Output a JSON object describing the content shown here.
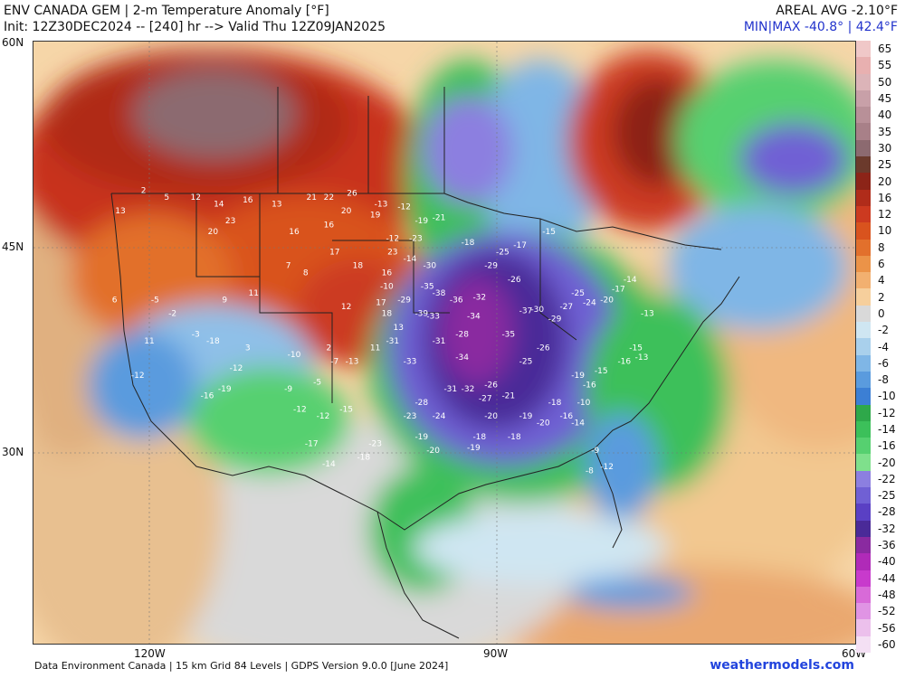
{
  "header": {
    "title": "ENV CANADA GEM | 2-m Temperature Anomaly [°F]",
    "init": "Init: 12Z30DEC2024 -- [240] hr --> Valid Thu 12Z09JAN2025",
    "areal_avg": "AREAL AVG -2.10°F",
    "minmax": "MIN|MAX -40.8° | 42.4°F"
  },
  "axes": {
    "lat_labels": [
      "60N",
      "45N",
      "30N"
    ],
    "lon_labels": [
      "120W",
      "90W",
      "60W"
    ]
  },
  "colorbar": {
    "labels": [
      "65",
      "55",
      "50",
      "45",
      "40",
      "35",
      "30",
      "25",
      "20",
      "16",
      "12",
      "10",
      "8",
      "6",
      "4",
      "2",
      "0",
      "-2",
      "-4",
      "-6",
      "-8",
      "-10",
      "-12",
      "-14",
      "-16",
      "-20",
      "-22",
      "-25",
      "-28",
      "-32",
      "-36",
      "-40",
      "-44",
      "-48",
      "-52",
      "-56",
      "-60"
    ],
    "colors": [
      "#f0c8c8",
      "#e8b0b0",
      "#dcb4b8",
      "#c8a0a8",
      "#b89098",
      "#a88088",
      "#8c6a70",
      "#6b3a2c",
      "#8c2418",
      "#b02c1a",
      "#cc3a20",
      "#d9531e",
      "#e2702c",
      "#eb9348",
      "#f2b070",
      "#f6cf9c",
      "#d9d9d9",
      "#cfe6f2",
      "#a9d0ec",
      "#7fb6e6",
      "#5a9bde",
      "#3c7fd4",
      "#2ea84a",
      "#3cc05a",
      "#56d070",
      "#7fe08c",
      "#8c7fe0",
      "#7060d4",
      "#5a40c4",
      "#4a2a98",
      "#8a2aa0",
      "#b02ab8",
      "#c83acc",
      "#d86ad8",
      "#e094e4",
      "#ecc0ec",
      "#f4e0f4"
    ]
  },
  "anomaly_labels": [
    {
      "v": "-38",
      "lon": -95.0,
      "lat": 41.5
    },
    {
      "v": "-36",
      "lon": -93.5,
      "lat": 41.0
    },
    {
      "v": "-35",
      "lon": -96.0,
      "lat": 42.0
    },
    {
      "v": "-39",
      "lon": -96.5,
      "lat": 40.0
    },
    {
      "v": "-34",
      "lon": -92.0,
      "lat": 39.8
    },
    {
      "v": "-33",
      "lon": -95.5,
      "lat": 39.8
    },
    {
      "v": "-32",
      "lon": -91.5,
      "lat": 41.2
    },
    {
      "v": "-30",
      "lon": -95.8,
      "lat": 43.5
    },
    {
      "v": "-29",
      "lon": -98.0,
      "lat": 41.0
    },
    {
      "v": "-31",
      "lon": -99.0,
      "lat": 38.0
    },
    {
      "v": "-33",
      "lon": -97.5,
      "lat": 36.5
    },
    {
      "v": "-31",
      "lon": -95.0,
      "lat": 38.0
    },
    {
      "v": "-28",
      "lon": -93.0,
      "lat": 38.5
    },
    {
      "v": "-34",
      "lon": -93.0,
      "lat": 36.8
    },
    {
      "v": "-32",
      "lon": -92.5,
      "lat": 34.5
    },
    {
      "v": "-31",
      "lon": -94.0,
      "lat": 34.5
    },
    {
      "v": "-28",
      "lon": -96.5,
      "lat": 33.5
    },
    {
      "v": "-24",
      "lon": -95.0,
      "lat": 32.5
    },
    {
      "v": "-23",
      "lon": -97.5,
      "lat": 32.5
    },
    {
      "v": "-19",
      "lon": -96.5,
      "lat": 31.0
    },
    {
      "v": "-20",
      "lon": -95.5,
      "lat": 30.0
    },
    {
      "v": "-26",
      "lon": -90.5,
      "lat": 34.8
    },
    {
      "v": "-27",
      "lon": -91.0,
      "lat": 33.8
    },
    {
      "v": "-21",
      "lon": -89.0,
      "lat": 34.0
    },
    {
      "v": "-20",
      "lon": -90.5,
      "lat": 32.5
    },
    {
      "v": "-18",
      "lon": -91.5,
      "lat": 31.0
    },
    {
      "v": "-19",
      "lon": -92.0,
      "lat": 30.2
    },
    {
      "v": "-25",
      "lon": -87.5,
      "lat": 36.5
    },
    {
      "v": "-26",
      "lon": -86.0,
      "lat": 37.5
    },
    {
      "v": "-35",
      "lon": -89.0,
      "lat": 38.5
    },
    {
      "v": "-37",
      "lon": -87.5,
      "lat": 40.2
    },
    {
      "v": "-30",
      "lon": -86.5,
      "lat": 40.3
    },
    {
      "v": "-29",
      "lon": -85.0,
      "lat": 39.6
    },
    {
      "v": "-27",
      "lon": -84.0,
      "lat": 40.5
    },
    {
      "v": "-25",
      "lon": -83.0,
      "lat": 41.5
    },
    {
      "v": "-24",
      "lon": -82.0,
      "lat": 40.8
    },
    {
      "v": "-20",
      "lon": -80.5,
      "lat": 41.0
    },
    {
      "v": "-26",
      "lon": -88.5,
      "lat": 42.5
    },
    {
      "v": "-25",
      "lon": -89.5,
      "lat": 44.5
    },
    {
      "v": "-29",
      "lon": -90.5,
      "lat": 43.5
    },
    {
      "v": "-23",
      "lon": -97.0,
      "lat": 45.5
    },
    {
      "v": "-18",
      "lon": -92.5,
      "lat": 45.2
    },
    {
      "v": "-21",
      "lon": -95.0,
      "lat": 47.0
    },
    {
      "v": "-19",
      "lon": -96.5,
      "lat": 46.8
    },
    {
      "v": "-12",
      "lon": -99.0,
      "lat": 45.5
    },
    {
      "v": "-14",
      "lon": -97.5,
      "lat": 44.0
    },
    {
      "v": "-10",
      "lon": -99.5,
      "lat": 42.0
    },
    {
      "v": "-13",
      "lon": -100.0,
      "lat": 48.0
    },
    {
      "v": "-12",
      "lon": -98.0,
      "lat": 47.8
    },
    {
      "v": "-17",
      "lon": -88.0,
      "lat": 45.0
    },
    {
      "v": "-15",
      "lon": -85.5,
      "lat": 46.0
    },
    {
      "v": "-14",
      "lon": -78.5,
      "lat": 42.5
    },
    {
      "v": "-17",
      "lon": -79.5,
      "lat": 41.8
    },
    {
      "v": "-13",
      "lon": -77.0,
      "lat": 40.0
    },
    {
      "v": "-15",
      "lon": -78.0,
      "lat": 37.5
    },
    {
      "v": "-16",
      "lon": -79.0,
      "lat": 36.5
    },
    {
      "v": "-13",
      "lon": -77.5,
      "lat": 36.8
    },
    {
      "v": "-19",
      "lon": -83.0,
      "lat": 35.5
    },
    {
      "v": "-16",
      "lon": -82.0,
      "lat": 34.8
    },
    {
      "v": "-15",
      "lon": -81.0,
      "lat": 35.8
    },
    {
      "v": "-18",
      "lon": -85.0,
      "lat": 33.5
    },
    {
      "v": "-16",
      "lon": -84.0,
      "lat": 32.5
    },
    {
      "v": "-14",
      "lon": -83.0,
      "lat": 32.0
    },
    {
      "v": "-10",
      "lon": -82.5,
      "lat": 33.5
    },
    {
      "v": "-9",
      "lon": -81.5,
      "lat": 30.0
    },
    {
      "v": "-12",
      "lon": -80.5,
      "lat": 28.8
    },
    {
      "v": "-8",
      "lon": -82.0,
      "lat": 28.5
    },
    {
      "v": "-20",
      "lon": -86.0,
      "lat": 32.0
    },
    {
      "v": "-18",
      "lon": -88.5,
      "lat": 31.0
    },
    {
      "v": "-19",
      "lon": -87.5,
      "lat": 32.5
    },
    {
      "v": "-13",
      "lon": -102.5,
      "lat": 36.5
    },
    {
      "v": "-15",
      "lon": -103.0,
      "lat": 33.0
    },
    {
      "v": "-12",
      "lon": -105.0,
      "lat": 32.5
    },
    {
      "v": "-17",
      "lon": -106.0,
      "lat": 30.5
    },
    {
      "v": "-14",
      "lon": -104.5,
      "lat": 29.0
    },
    {
      "v": "-18",
      "lon": -101.5,
      "lat": 29.5
    },
    {
      "v": "-23",
      "lon": -100.5,
      "lat": 30.5
    },
    {
      "v": "-12",
      "lon": -107.0,
      "lat": 33.0
    },
    {
      "v": "-9",
      "lon": -108.0,
      "lat": 34.5
    },
    {
      "v": "-5",
      "lon": -105.5,
      "lat": 35.0
    },
    {
      "v": "-7",
      "lon": -104.0,
      "lat": 36.5
    },
    {
      "v": "-10",
      "lon": -107.5,
      "lat": 37.0
    },
    {
      "v": "-12",
      "lon": -112.5,
      "lat": 36.0
    },
    {
      "v": "-16",
      "lon": -115.0,
      "lat": 34.0
    },
    {
      "v": "-19",
      "lon": -113.5,
      "lat": 34.5
    },
    {
      "v": "-18",
      "lon": -114.5,
      "lat": 38.0
    },
    {
      "v": "-3",
      "lon": -116.0,
      "lat": 38.5
    },
    {
      "v": "-5",
      "lon": -119.5,
      "lat": 41.0
    },
    {
      "v": "-2",
      "lon": -118.0,
      "lat": 40.0
    },
    {
      "v": "-12",
      "lon": -121.0,
      "lat": 35.5
    },
    {
      "v": "11",
      "lon": -120.0,
      "lat": 38.0
    },
    {
      "v": "6",
      "lon": -123.0,
      "lat": 41.0
    },
    {
      "v": "13",
      "lon": -122.5,
      "lat": 47.5
    },
    {
      "v": "2",
      "lon": -120.5,
      "lat": 49.0
    },
    {
      "v": "5",
      "lon": -118.5,
      "lat": 48.5
    },
    {
      "v": "12",
      "lon": -116.0,
      "lat": 48.5
    },
    {
      "v": "14",
      "lon": -114.0,
      "lat": 48.0
    },
    {
      "v": "16",
      "lon": -111.5,
      "lat": 48.3
    },
    {
      "v": "13",
      "lon": -109.0,
      "lat": 48.0
    },
    {
      "v": "21",
      "lon": -106.0,
      "lat": 48.5
    },
    {
      "v": "22",
      "lon": -104.5,
      "lat": 48.5
    },
    {
      "v": "26",
      "lon": -102.5,
      "lat": 48.8
    },
    {
      "v": "20",
      "lon": -103.0,
      "lat": 47.5
    },
    {
      "v": "16",
      "lon": -104.5,
      "lat": 46.5
    },
    {
      "v": "19",
      "lon": -100.5,
      "lat": 47.2
    },
    {
      "v": "23",
      "lon": -113.0,
      "lat": 46.8
    },
    {
      "v": "20",
      "lon": -114.5,
      "lat": 46.0
    },
    {
      "v": "16",
      "lon": -107.5,
      "lat": 46.0
    },
    {
      "v": "17",
      "lon": -104.0,
      "lat": 44.5
    },
    {
      "v": "18",
      "lon": -102.0,
      "lat": 43.5
    },
    {
      "v": "16",
      "lon": -99.5,
      "lat": 43.0
    },
    {
      "v": "23",
      "lon": -99.0,
      "lat": 44.5
    },
    {
      "v": "12",
      "lon": -103.0,
      "lat": 40.5
    },
    {
      "v": "17",
      "lon": -100.0,
      "lat": 40.8
    },
    {
      "v": "18",
      "lon": -99.5,
      "lat": 40.0
    },
    {
      "v": "13",
      "lon": -98.5,
      "lat": 39.0
    },
    {
      "v": "11",
      "lon": -100.5,
      "lat": 37.5
    },
    {
      "v": "8",
      "lon": -106.5,
      "lat": 43.0
    },
    {
      "v": "7",
      "lon": -108.0,
      "lat": 43.5
    },
    {
      "v": "11",
      "lon": -111.0,
      "lat": 41.5
    },
    {
      "v": "9",
      "lon": -113.5,
      "lat": 41.0
    },
    {
      "v": "3",
      "lon": -111.5,
      "lat": 37.5
    },
    {
      "v": "2",
      "lon": -104.5,
      "lat": 37.5
    }
  ],
  "footer": {
    "source": "Data Environment Canada | 15 km Grid 84 Levels | GDPS Version 9.0.0 [June 2024]",
    "brand": "weathermodels.com"
  }
}
